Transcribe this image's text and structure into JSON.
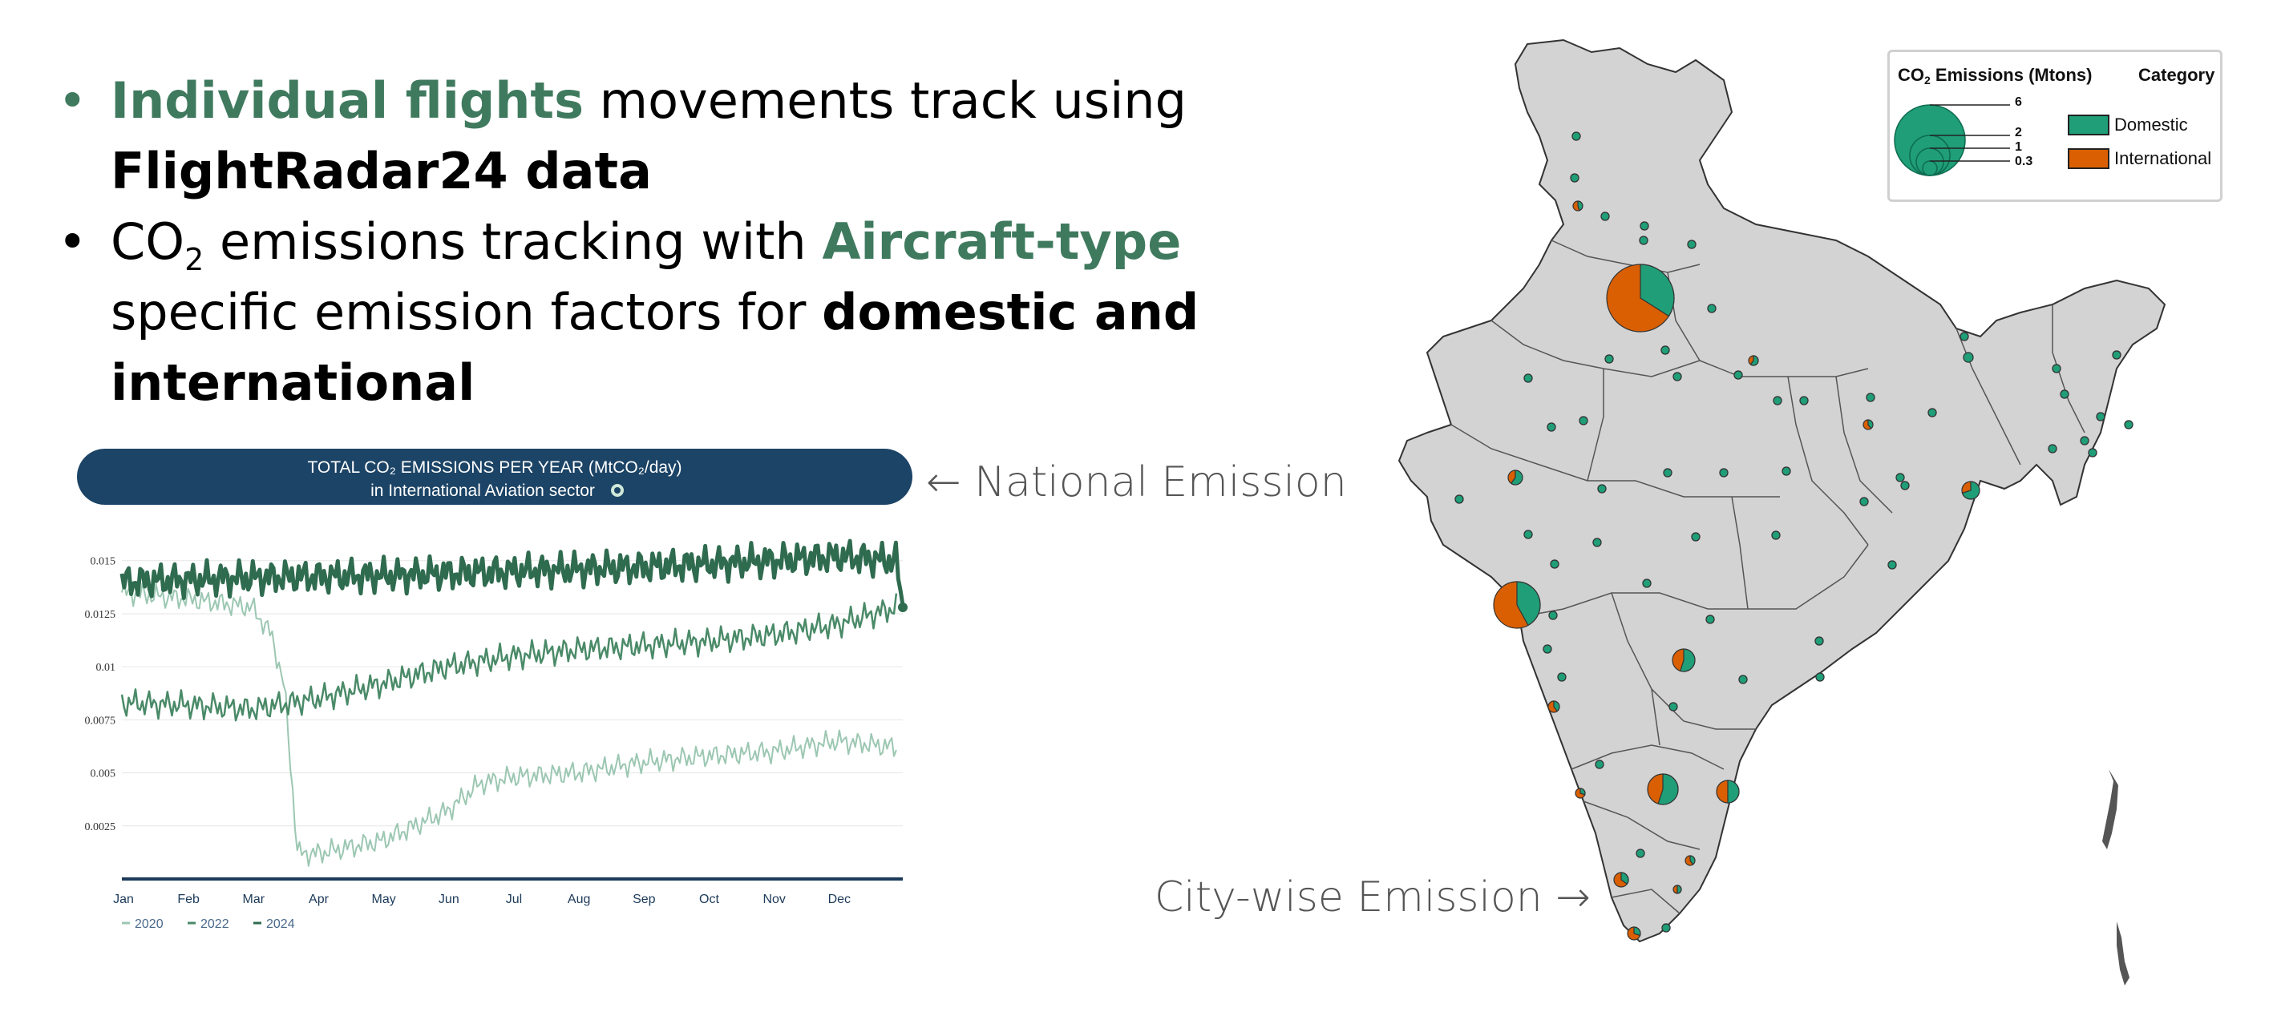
{
  "bullets": [
    {
      "segments": [
        {
          "text": "Individual flights",
          "style": "green"
        },
        {
          "text": " movements track using ",
          "style": ""
        },
        {
          "text": "FlightRadar24 data",
          "style": "bold"
        }
      ]
    },
    {
      "segments": [
        {
          "text": "CO",
          "style": ""
        },
        {
          "text": "2",
          "style": "sub"
        },
        {
          "text": " emissions tracking with ",
          "style": ""
        },
        {
          "text": "Aircraft-type",
          "style": "green"
        },
        {
          "text": " specific emission factors for ",
          "style": ""
        },
        {
          "text": "domestic and international",
          "style": "bold"
        }
      ]
    }
  ],
  "annotations": {
    "national": "← National Emission",
    "city": "City-wise Emission →"
  },
  "chart_data": {
    "type": "line",
    "title": "TOTAL CO₂ EMISSIONS PER YEAR (MtCO₂/day)",
    "subtitle": "in International Aviation sector",
    "info_icon": "info-icon",
    "categories": [
      "Jan",
      "Feb",
      "Mar",
      "Apr",
      "May",
      "Jun",
      "Jul",
      "Aug",
      "Sep",
      "Oct",
      "Nov",
      "Dec"
    ],
    "y_ticks": [
      "0.015",
      "0.0125",
      "0.01",
      "0.0075",
      "0.005",
      "0.0025"
    ],
    "y_tick_values": [
      0.015,
      0.0125,
      0.01,
      0.0075,
      0.005,
      0.0025
    ],
    "ylim": [
      0,
      0.0165
    ],
    "xlim": [
      0,
      12
    ],
    "grid": true,
    "legend_position": "bottom-left",
    "series": [
      {
        "name": "2020",
        "color": "#9cc7b2",
        "width": 2,
        "anchors": [
          [
            0,
            0.0135
          ],
          [
            1,
            0.0132
          ],
          [
            2,
            0.0128
          ],
          [
            2.3,
            0.0115
          ],
          [
            2.5,
            0.009
          ],
          [
            2.7,
            0.0012
          ],
          [
            3,
            0.0012
          ],
          [
            4,
            0.0018
          ],
          [
            5,
            0.0032
          ],
          [
            5.5,
            0.0045
          ],
          [
            6,
            0.0048
          ],
          [
            7,
            0.005
          ],
          [
            8,
            0.0055
          ],
          [
            9,
            0.0058
          ],
          [
            10,
            0.006
          ],
          [
            11,
            0.0065
          ],
          [
            11.9,
            0.0062
          ]
        ],
        "amplitude": 0.0006
      },
      {
        "name": "2022",
        "color": "#4a8a68",
        "width": 2.5,
        "anchors": [
          [
            0,
            0.0083
          ],
          [
            1,
            0.0082
          ],
          [
            2,
            0.008
          ],
          [
            3,
            0.0085
          ],
          [
            4,
            0.0092
          ],
          [
            5,
            0.01
          ],
          [
            6,
            0.0105
          ],
          [
            7,
            0.0108
          ],
          [
            8,
            0.011
          ],
          [
            9,
            0.0112
          ],
          [
            10,
            0.0115
          ],
          [
            11,
            0.012
          ],
          [
            11.9,
            0.0128
          ]
        ],
        "amplitude": 0.0007
      },
      {
        "name": "2024",
        "color": "#2f6b4f",
        "width": 5,
        "anchors": [
          [
            0,
            0.014
          ],
          [
            2,
            0.0142
          ],
          [
            4,
            0.0143
          ],
          [
            6,
            0.0145
          ],
          [
            8,
            0.0147
          ],
          [
            10,
            0.015
          ],
          [
            11,
            0.0152
          ],
          [
            11.9,
            0.015
          ],
          [
            12,
            0.0128
          ]
        ],
        "amplitude": 0.0009
      }
    ]
  },
  "map": {
    "legend": {
      "size_title_prefix": "CO",
      "size_title_sub": "2",
      "size_title_suffix": " Emissions (Mtons)",
      "category_title": "Category",
      "sizes": [
        "6",
        "2",
        "1",
        "0.3"
      ],
      "categories": [
        {
          "label": "Domestic",
          "color": "#1f9e77"
        },
        {
          "label": "International",
          "color": "#d95f02"
        }
      ]
    },
    "cities": [
      {
        "x": 2046,
        "y": 372,
        "r": 42,
        "dom": 0.34
      },
      {
        "x": 1892,
        "y": 755,
        "r": 29,
        "dom": 0.42
      },
      {
        "x": 2074,
        "y": 985,
        "r": 19,
        "dom": 0.55
      },
      {
        "x": 2100,
        "y": 824,
        "r": 14,
        "dom": 0.55
      },
      {
        "x": 2155,
        "y": 988,
        "r": 14,
        "dom": 0.5
      },
      {
        "x": 2458,
        "y": 612,
        "r": 11,
        "dom": 0.7
      },
      {
        "x": 1890,
        "y": 596,
        "r": 9,
        "dom": 0.6
      },
      {
        "x": 2022,
        "y": 1098,
        "r": 9,
        "dom": 0.35
      },
      {
        "x": 2038,
        "y": 1165,
        "r": 8,
        "dom": 0.3
      },
      {
        "x": 1938,
        "y": 882,
        "r": 7,
        "dom": 0.4
      },
      {
        "x": 1971,
        "y": 990,
        "r": 6,
        "dom": 0.3
      },
      {
        "x": 2187,
        "y": 450,
        "r": 6,
        "dom": 0.6
      },
      {
        "x": 2330,
        "y": 530,
        "r": 6,
        "dom": 0.4
      },
      {
        "x": 1968,
        "y": 257,
        "r": 6,
        "dom": 0.45
      },
      {
        "x": 2108,
        "y": 1074,
        "r": 6,
        "dom": 0.4
      },
      {
        "x": 2092,
        "y": 1110,
        "r": 5,
        "dom": 0.5
      },
      {
        "x": 2455,
        "y": 446,
        "r": 6,
        "dom": 1
      },
      {
        "x": 1966,
        "y": 170,
        "r": 5,
        "dom": 1
      },
      {
        "x": 1964,
        "y": 222,
        "r": 5,
        "dom": 1
      },
      {
        "x": 2002,
        "y": 270,
        "r": 5,
        "dom": 1
      },
      {
        "x": 2051,
        "y": 282,
        "r": 5,
        "dom": 1
      },
      {
        "x": 2050,
        "y": 300,
        "r": 5,
        "dom": 1
      },
      {
        "x": 2110,
        "y": 305,
        "r": 5,
        "dom": 1
      },
      {
        "x": 2135,
        "y": 385,
        "r": 5,
        "dom": 1
      },
      {
        "x": 2007,
        "y": 448,
        "r": 5,
        "dom": 1
      },
      {
        "x": 2077,
        "y": 437,
        "r": 5,
        "dom": 1
      },
      {
        "x": 2092,
        "y": 470,
        "r": 5,
        "dom": 1
      },
      {
        "x": 2168,
        "y": 468,
        "r": 5,
        "dom": 1
      },
      {
        "x": 2217,
        "y": 500,
        "r": 5,
        "dom": 1
      },
      {
        "x": 2250,
        "y": 500,
        "r": 5,
        "dom": 1
      },
      {
        "x": 2333,
        "y": 496,
        "r": 5,
        "dom": 1
      },
      {
        "x": 2370,
        "y": 596,
        "r": 5,
        "dom": 1
      },
      {
        "x": 2325,
        "y": 626,
        "r": 5,
        "dom": 1
      },
      {
        "x": 2376,
        "y": 606,
        "r": 5,
        "dom": 1
      },
      {
        "x": 2410,
        "y": 515,
        "r": 5,
        "dom": 1
      },
      {
        "x": 2450,
        "y": 420,
        "r": 5,
        "dom": 1
      },
      {
        "x": 1906,
        "y": 472,
        "r": 5,
        "dom": 1
      },
      {
        "x": 1935,
        "y": 533,
        "r": 5,
        "dom": 1
      },
      {
        "x": 1975,
        "y": 525,
        "r": 5,
        "dom": 1
      },
      {
        "x": 1820,
        "y": 623,
        "r": 5,
        "dom": 1
      },
      {
        "x": 1906,
        "y": 667,
        "r": 5,
        "dom": 1
      },
      {
        "x": 1998,
        "y": 610,
        "r": 5,
        "dom": 1
      },
      {
        "x": 2080,
        "y": 590,
        "r": 5,
        "dom": 1
      },
      {
        "x": 2150,
        "y": 590,
        "r": 5,
        "dom": 1
      },
      {
        "x": 2228,
        "y": 588,
        "r": 5,
        "dom": 1
      },
      {
        "x": 1992,
        "y": 677,
        "r": 5,
        "dom": 1
      },
      {
        "x": 2115,
        "y": 670,
        "r": 5,
        "dom": 1
      },
      {
        "x": 2215,
        "y": 668,
        "r": 5,
        "dom": 1
      },
      {
        "x": 1939,
        "y": 704,
        "r": 5,
        "dom": 1
      },
      {
        "x": 2054,
        "y": 728,
        "r": 5,
        "dom": 1
      },
      {
        "x": 1937,
        "y": 768,
        "r": 5,
        "dom": 1
      },
      {
        "x": 1930,
        "y": 810,
        "r": 5,
        "dom": 1
      },
      {
        "x": 2133,
        "y": 773,
        "r": 5,
        "dom": 1
      },
      {
        "x": 2269,
        "y": 800,
        "r": 5,
        "dom": 1
      },
      {
        "x": 2360,
        "y": 705,
        "r": 5,
        "dom": 1
      },
      {
        "x": 2270,
        "y": 845,
        "r": 5,
        "dom": 1
      },
      {
        "x": 1948,
        "y": 845,
        "r": 5,
        "dom": 1
      },
      {
        "x": 2174,
        "y": 848,
        "r": 5,
        "dom": 1
      },
      {
        "x": 2087,
        "y": 882,
        "r": 5,
        "dom": 1
      },
      {
        "x": 1995,
        "y": 954,
        "r": 5,
        "dom": 1
      },
      {
        "x": 2046,
        "y": 1065,
        "r": 5,
        "dom": 1
      },
      {
        "x": 2078,
        "y": 1158,
        "r": 5,
        "dom": 1
      },
      {
        "x": 2565,
        "y": 460,
        "r": 5,
        "dom": 1
      },
      {
        "x": 2575,
        "y": 492,
        "r": 5,
        "dom": 1
      },
      {
        "x": 2620,
        "y": 520,
        "r": 5,
        "dom": 1
      },
      {
        "x": 2600,
        "y": 550,
        "r": 5,
        "dom": 1
      },
      {
        "x": 2560,
        "y": 560,
        "r": 5,
        "dom": 1
      },
      {
        "x": 2610,
        "y": 565,
        "r": 5,
        "dom": 1
      },
      {
        "x": 2655,
        "y": 530,
        "r": 5,
        "dom": 1
      },
      {
        "x": 2640,
        "y": 443,
        "r": 5,
        "dom": 1
      }
    ]
  }
}
